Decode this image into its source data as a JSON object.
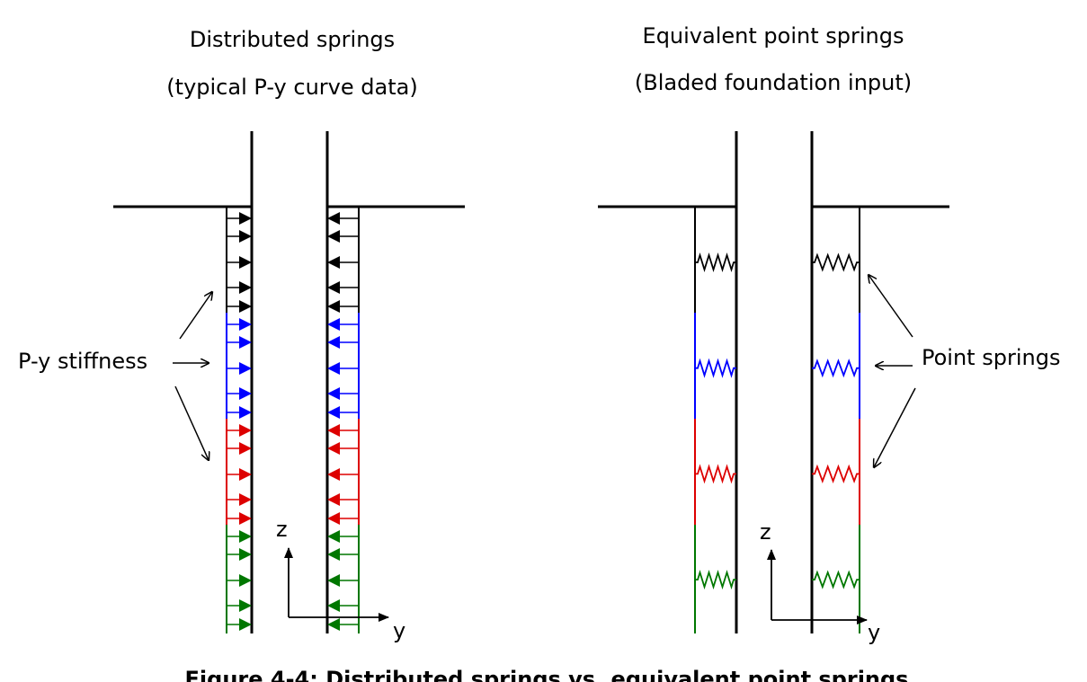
{
  "left": {
    "title_line1": "Distributed springs",
    "title_line2": "(typical P-y curve data)",
    "label": "P-y stiffness",
    "axis_z": "z",
    "axis_y": "y"
  },
  "right": {
    "title_line1": "Equivalent point springs",
    "title_line2": "(Bladed foundation input)",
    "label": "Point springs",
    "axis_z": "z",
    "axis_y": "y"
  },
  "caption": "Figure 4-4: Distributed springs vs. equivalent point springs",
  "layer_colors": [
    "#000000",
    "#0000ff",
    "#dd0000",
    "#007700"
  ]
}
